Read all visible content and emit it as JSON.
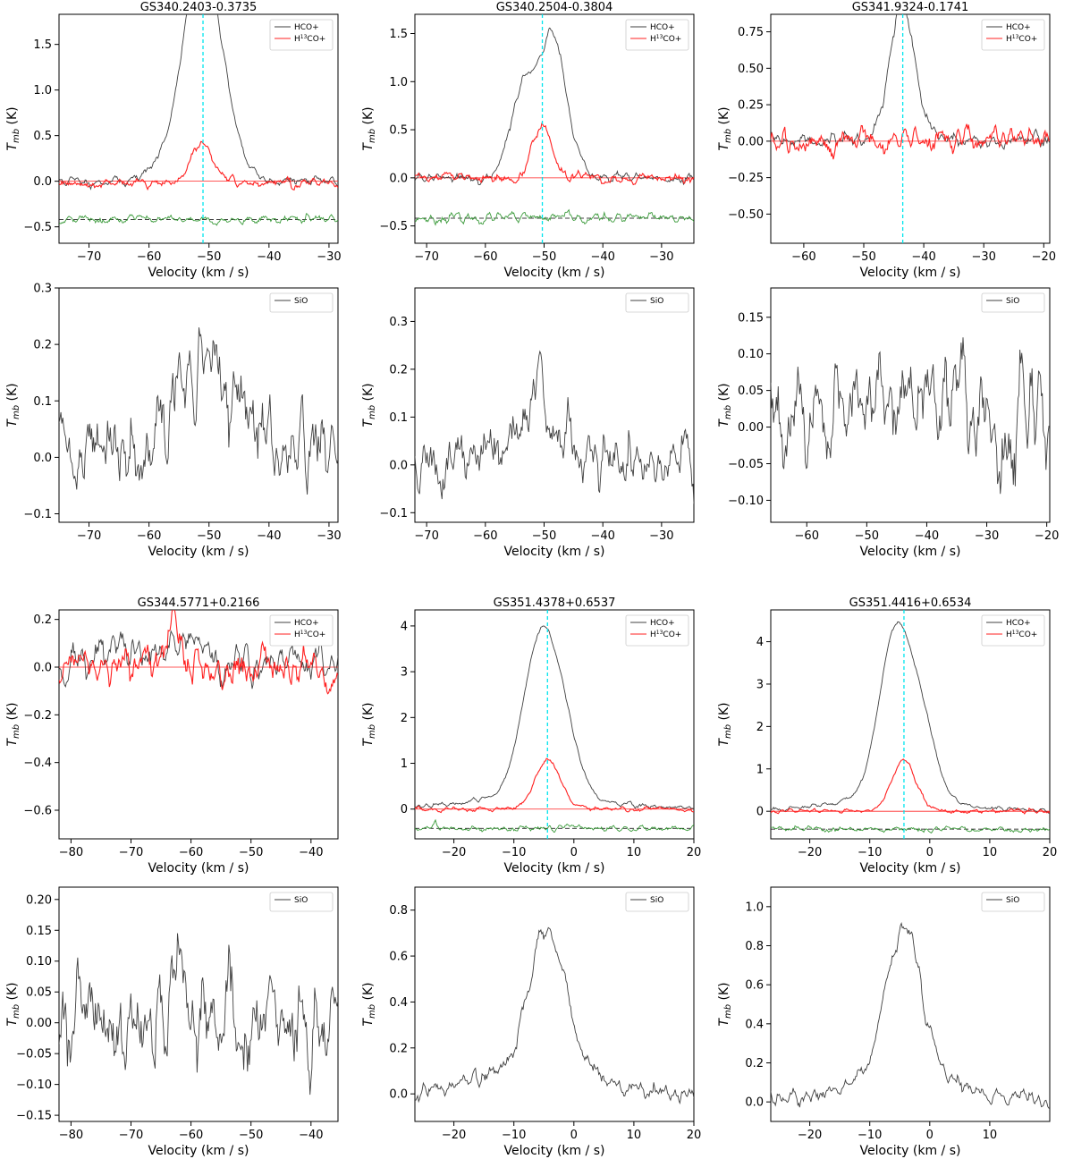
{
  "colors": {
    "hco": "#404040",
    "h13co": "#ff2020",
    "sio": "#404040",
    "residual": "#3a9a3a",
    "vlsr": "#00e5ee",
    "dashed": "#000000"
  },
  "chart_data": [
    {
      "type": "line",
      "title": "GS340.2403-0.3735",
      "xlabel": "Velocity (km / s)",
      "ylabel": "T_mb (K)",
      "xlim": [
        -75,
        -28.5
      ],
      "ylim": [
        -0.68,
        1.83
      ],
      "xticks": [
        -70,
        -60,
        -50,
        -40,
        -30
      ],
      "yticks": [
        -0.5,
        0.0,
        0.5,
        1.0,
        1.5
      ],
      "ytick_labels": [
        "−0.5",
        "0.0",
        "0.5",
        "1.0",
        "1.5"
      ],
      "legend": "top-right",
      "vlsr": -51,
      "series": [
        {
          "name": "HCO+",
          "role": "hco",
          "components": [
            {
              "amp": 1.5,
              "center": -52.4,
              "width": 2.6
            },
            {
              "amp": 1.25,
              "center": -49.6,
              "width": 2.6
            },
            {
              "amp": 0.22,
              "center": -56.5,
              "width": 3.0
            },
            {
              "amp": 0.25,
              "center": -46.5,
              "width": 2.5
            }
          ],
          "noise": 0.03,
          "baseline": 0.0,
          "seed": 11
        },
        {
          "name": "H13CO+",
          "role": "h13co",
          "components": [
            {
              "amp": 0.42,
              "center": -51,
              "width": 1.9
            }
          ],
          "noise": 0.03,
          "baseline": -0.02,
          "seed": 12
        },
        {
          "name": "",
          "role": "residual",
          "components": [],
          "noise": 0.03,
          "baseline": -0.42,
          "seed": 13
        }
      ],
      "residual_level": -0.42
    },
    {
      "type": "line",
      "title": "GS340.2504-0.3804",
      "xlabel": "Velocity (km / s)",
      "ylabel": "T_mb (K)",
      "xlim": [
        -72,
        -24.5
      ],
      "ylim": [
        -0.68,
        1.7
      ],
      "xticks": [
        -70,
        -60,
        -50,
        -40,
        -30
      ],
      "yticks": [
        -0.5,
        0.0,
        0.5,
        1.0,
        1.5
      ],
      "ytick_labels": [
        "−0.5",
        "0.0",
        "0.5",
        "1.0",
        "1.5"
      ],
      "legend": "top-right",
      "vlsr": -50.3,
      "series": [
        {
          "name": "HCO+",
          "role": "hco",
          "components": [
            {
              "amp": 1.0,
              "center": -53.3,
              "width": 2.2
            },
            {
              "amp": 1.38,
              "center": -48.6,
              "width": 1.9
            },
            {
              "amp": 0.22,
              "center": -45.5,
              "width": 2.0
            }
          ],
          "noise": 0.03,
          "baseline": 0.0,
          "seed": 21
        },
        {
          "name": "H13CO+",
          "role": "h13co",
          "components": [
            {
              "amp": 0.55,
              "center": -50.3,
              "width": 1.6
            }
          ],
          "noise": 0.03,
          "baseline": 0.0,
          "seed": 22
        },
        {
          "name": "",
          "role": "residual",
          "components": [],
          "noise": 0.03,
          "baseline": -0.42,
          "seed": 23
        }
      ],
      "residual_level": -0.42
    },
    {
      "type": "line",
      "title": "GS341.9324-0.1741",
      "xlabel": "Velocity (km / s)",
      "ylabel": "T_mb (K)",
      "xlim": [
        -65.5,
        -19
      ],
      "ylim": [
        -0.7,
        0.87
      ],
      "xticks": [
        -60,
        -50,
        -40,
        -30,
        -20
      ],
      "yticks": [
        -0.5,
        -0.25,
        0.0,
        0.25,
        0.5,
        0.75
      ],
      "ytick_labels": [
        "−0.50",
        "−0.25",
        "0.00",
        "0.25",
        "0.50",
        "0.75"
      ],
      "legend": "top-right",
      "vlsr": -43.5,
      "series": [
        {
          "name": "HCO+",
          "role": "hco",
          "components": [
            {
              "amp": 0.42,
              "center": -45.3,
              "width": 1.6
            },
            {
              "amp": 0.72,
              "center": -43.3,
              "width": 1.4
            },
            {
              "amp": 0.22,
              "center": -41.0,
              "width": 1.6
            }
          ],
          "noise": 0.03,
          "baseline": 0.0,
          "seed": 31
        },
        {
          "name": "H13CO+",
          "role": "h13co",
          "components": [],
          "noise": 0.05,
          "baseline": 0.0,
          "seed": 32
        }
      ]
    },
    {
      "type": "line",
      "title": "",
      "xlabel": "Velocity (km / s)",
      "ylabel": "T_mb (K)",
      "xlim": [
        -75,
        -28.5
      ],
      "ylim": [
        -0.115,
        0.3
      ],
      "xticks": [
        -70,
        -60,
        -50,
        -40,
        -30
      ],
      "yticks": [
        -0.1,
        0.0,
        0.1,
        0.2,
        0.3
      ],
      "ytick_labels": [
        "−0.1",
        "0.0",
        "0.1",
        "0.2",
        "0.3"
      ],
      "legend": "top-right",
      "series": [
        {
          "name": "SiO",
          "role": "sio",
          "components": [
            {
              "amp": 0.1,
              "center": -52,
              "width": 7
            },
            {
              "amp": 0.08,
              "center": -50,
              "width": 2
            }
          ],
          "noise": 0.045,
          "baseline": 0.01,
          "seed": 41
        }
      ]
    },
    {
      "type": "line",
      "title": "",
      "xlabel": "Velocity (km / s)",
      "ylabel": "T_mb (K)",
      "xlim": [
        -72,
        -24.5
      ],
      "ylim": [
        -0.12,
        0.37
      ],
      "xticks": [
        -70,
        -60,
        -50,
        -40,
        -30
      ],
      "yticks": [
        -0.1,
        0.0,
        0.1,
        0.2,
        0.3
      ],
      "ytick_labels": [
        "−0.1",
        "0.0",
        "0.1",
        "0.2",
        "0.3"
      ],
      "legend": "top-right",
      "series": [
        {
          "name": "SiO",
          "role": "sio",
          "components": [
            {
              "amp": 0.09,
              "center": -51,
              "width": 4
            },
            {
              "amp": 0.11,
              "center": -50.3,
              "width": 1.2
            }
          ],
          "noise": 0.04,
          "baseline": 0.0,
          "seed": 51
        }
      ]
    },
    {
      "type": "line",
      "title": "",
      "xlabel": "Velocity (km / s)",
      "ylabel": "T_mb (K)",
      "xlim": [
        -66,
        -19.5
      ],
      "ylim": [
        -0.13,
        0.19
      ],
      "xticks": [
        -60,
        -50,
        -40,
        -30,
        -20
      ],
      "yticks": [
        -0.1,
        -0.05,
        0.0,
        0.05,
        0.1,
        0.15
      ],
      "ytick_labels": [
        "−0.10",
        "−0.05",
        "0.00",
        "0.05",
        "0.10",
        "0.15"
      ],
      "legend": "top-right",
      "series": [
        {
          "name": "SiO",
          "role": "sio",
          "components": [
            {
              "amp": 0.05,
              "center": -43,
              "width": 8
            }
          ],
          "noise": 0.045,
          "baseline": 0.005,
          "seed": 61
        }
      ]
    },
    {
      "type": "line",
      "title": "GS344.5771+0.2166",
      "xlabel": "Velocity (km / s)",
      "ylabel": "T_mb (K)",
      "xlim": [
        -82,
        -35.5
      ],
      "ylim": [
        -0.72,
        0.24
      ],
      "xticks": [
        -80,
        -70,
        -60,
        -50,
        -40
      ],
      "yticks": [
        -0.6,
        -0.4,
        -0.2,
        0.0,
        0.2
      ],
      "ytick_labels": [
        "−0.6",
        "−0.4",
        "−0.2",
        "0.0",
        "0.2"
      ],
      "legend": "top-right",
      "series": [
        {
          "name": "HCO+",
          "role": "hco",
          "components": [
            {
              "amp": 0.1,
              "center": -60,
              "width": 2
            },
            {
              "amp": 0.06,
              "center": -72,
              "width": 3
            }
          ],
          "noise": 0.05,
          "baseline": 0.02,
          "seed": 71
        },
        {
          "name": "H13CO+",
          "role": "h13co",
          "components": [
            {
              "amp": 0.19,
              "center": -63,
              "width": 1.0
            }
          ],
          "noise": 0.045,
          "baseline": 0.0,
          "seed": 72
        }
      ]
    },
    {
      "type": "line",
      "title": "GS351.4378+0.6537",
      "xlabel": "Velocity (km / s)",
      "ylabel": "T_mb (K)",
      "xlim": [
        -26.5,
        20
      ],
      "ylim": [
        -0.65,
        4.35
      ],
      "xticks": [
        -20,
        -10,
        0,
        10,
        20
      ],
      "yticks": [
        0,
        1,
        2,
        3,
        4
      ],
      "ytick_labels": [
        "0",
        "1",
        "2",
        "3",
        "4"
      ],
      "legend": "top-right",
      "vlsr": -4.4,
      "series": [
        {
          "name": "HCO+",
          "role": "hco",
          "components": [
            {
              "amp": 3.5,
              "center": -5.4,
              "width": 2.9
            },
            {
              "amp": 0.85,
              "center": -1.0,
              "width": 2.3
            },
            {
              "amp": 0.3,
              "center": -6,
              "width": 9
            }
          ],
          "noise": 0.03,
          "baseline": 0.03,
          "seed": 81
        },
        {
          "name": "H13CO+",
          "role": "h13co",
          "components": [
            {
              "amp": 1.07,
              "center": -4.4,
              "width": 2.1
            }
          ],
          "noise": 0.03,
          "baseline": 0.0,
          "seed": 82
        },
        {
          "name": "",
          "role": "residual",
          "components": [],
          "noise": 0.04,
          "baseline": -0.42,
          "seed": 83
        }
      ],
      "residual_level": -0.42
    },
    {
      "type": "line",
      "title": "GS351.4416+0.6534",
      "xlabel": "Velocity (km / s)",
      "ylabel": "T_mb (K)",
      "xlim": [
        -26.5,
        20
      ],
      "ylim": [
        -0.65,
        4.75
      ],
      "xticks": [
        -20,
        -10,
        0,
        10,
        20
      ],
      "yticks": [
        0,
        1,
        2,
        3,
        4
      ],
      "ytick_labels": [
        "0",
        "1",
        "2",
        "3",
        "4"
      ],
      "legend": "top-right",
      "vlsr": -4.3,
      "series": [
        {
          "name": "HCO+",
          "role": "hco",
          "components": [
            {
              "amp": 3.9,
              "center": -5.6,
              "width": 2.8
            },
            {
              "amp": 1.3,
              "center": -1.0,
              "width": 2.3
            },
            {
              "amp": 0.3,
              "center": -6,
              "width": 9
            }
          ],
          "noise": 0.03,
          "baseline": 0.02,
          "seed": 91
        },
        {
          "name": "H13CO+",
          "role": "h13co",
          "components": [
            {
              "amp": 1.22,
              "center": -4.3,
              "width": 2.0
            }
          ],
          "noise": 0.03,
          "baseline": 0.0,
          "seed": 92
        },
        {
          "name": "",
          "role": "residual",
          "components": [],
          "noise": 0.04,
          "baseline": -0.42,
          "seed": 93
        }
      ],
      "residual_level": -0.42
    },
    {
      "type": "line",
      "title": "",
      "xlabel": "Velocity (km / s)",
      "ylabel": "T_mb (K)",
      "xlim": [
        -82,
        -35.5
      ],
      "ylim": [
        -0.16,
        0.22
      ],
      "xticks": [
        -80,
        -70,
        -60,
        -50,
        -40
      ],
      "yticks": [
        -0.15,
        -0.1,
        -0.05,
        0.0,
        0.05,
        0.1,
        0.15,
        0.2
      ],
      "ytick_labels": [
        "−0.15",
        "−0.10",
        "−0.05",
        "0.00",
        "0.05",
        "0.10",
        "0.15",
        "0.20"
      ],
      "legend": "top-right",
      "series": [
        {
          "name": "SiO",
          "role": "sio",
          "components": [
            {
              "amp": 0.13,
              "center": -62,
              "width": 0.9
            }
          ],
          "noise": 0.045,
          "baseline": 0.0,
          "seed": 101
        }
      ]
    },
    {
      "type": "line",
      "title": "",
      "xlabel": "Velocity (km / s)",
      "ylabel": "T_mb (K)",
      "xlim": [
        -26.5,
        20
      ],
      "ylim": [
        -0.12,
        0.9
      ],
      "xticks": [
        -20,
        -10,
        0,
        10,
        20
      ],
      "yticks": [
        0.0,
        0.2,
        0.4,
        0.6,
        0.8
      ],
      "ytick_labels": [
        "0.0",
        "0.2",
        "0.4",
        "0.6",
        "0.8"
      ],
      "legend": "top-right",
      "series": [
        {
          "name": "SiO",
          "role": "sio",
          "components": [
            {
              "amp": 0.6,
              "center": -4.5,
              "width": 3.0
            },
            {
              "amp": 0.12,
              "center": -5,
              "width": 9
            }
          ],
          "noise": 0.025,
          "baseline": 0.0,
          "seed": 111
        }
      ]
    },
    {
      "type": "line",
      "title": "",
      "xlabel": "Velocity (km / s)",
      "ylabel": "T_mb (K)",
      "xlim": [
        -26.5,
        20
      ],
      "ylim": [
        -0.1,
        1.1
      ],
      "xticks": [
        -20,
        -10,
        0,
        10
      ],
      "yticks": [
        0.0,
        0.2,
        0.4,
        0.6,
        0.8,
        1.0
      ],
      "ytick_labels": [
        "0.0",
        "0.2",
        "0.4",
        "0.6",
        "0.8",
        "1.0"
      ],
      "legend": "top-right",
      "series": [
        {
          "name": "SiO",
          "role": "sio",
          "components": [
            {
              "amp": 0.76,
              "center": -4.3,
              "width": 2.9
            },
            {
              "amp": 0.14,
              "center": -5,
              "width": 9
            }
          ],
          "noise": 0.025,
          "baseline": 0.0,
          "seed": 121
        }
      ]
    }
  ]
}
